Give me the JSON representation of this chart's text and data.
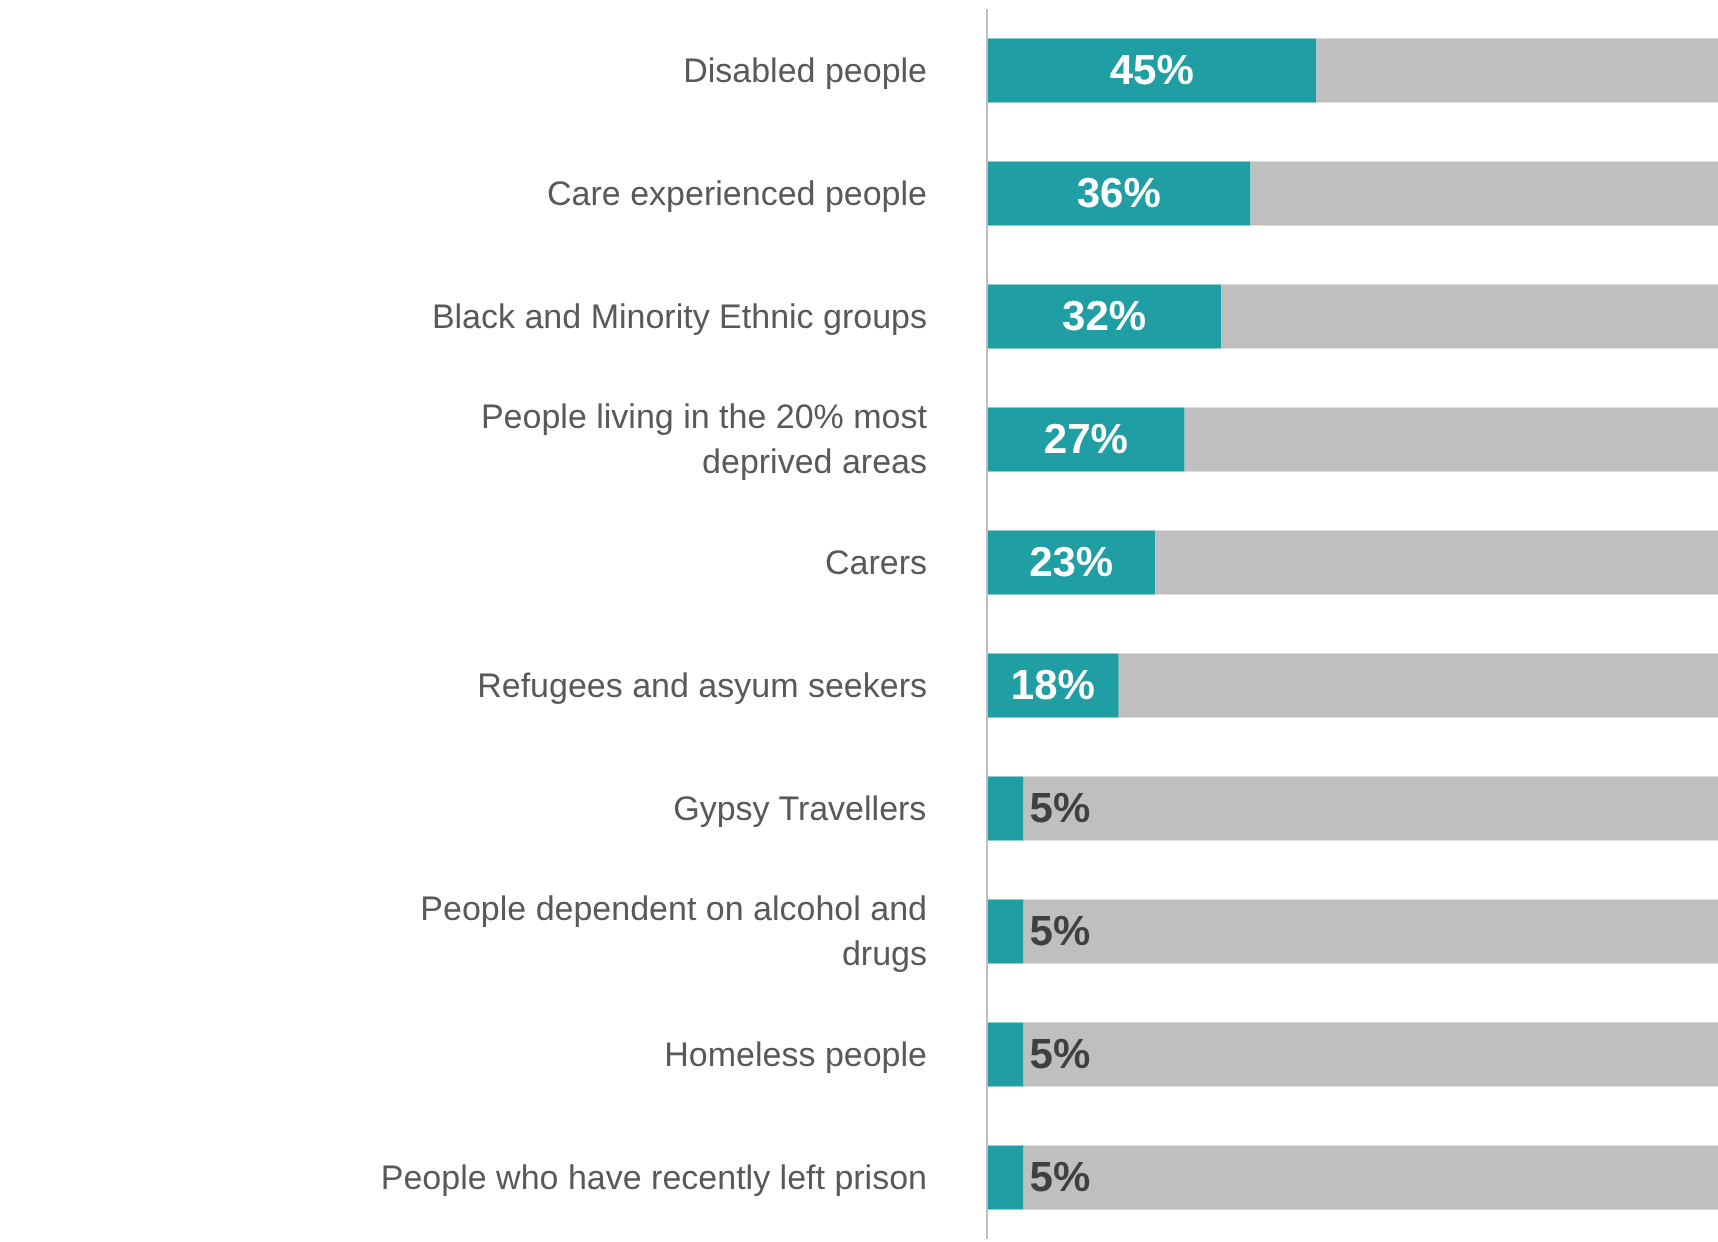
{
  "chart_data": {
    "type": "bar",
    "orientation": "horizontal",
    "stacked": true,
    "categories": [
      "Disabled people",
      "Care experienced people",
      "Black and Minority Ethnic groups",
      "People living in the 20% most deprived areas",
      "Carers",
      "Refugees and asyum seekers",
      "Gypsy Travellers",
      "People dependent on alcohol and drugs",
      "Homeless people",
      "People who have recently left prison"
    ],
    "series": [
      {
        "color": "#1f9ea3",
        "values": [
          45,
          36,
          32,
          27,
          23,
          18,
          5,
          5,
          5,
          5
        ],
        "value_labels": [
          "45%",
          "36%",
          "32%",
          "27%",
          "23%",
          "18%",
          "5%",
          "5%",
          "5%",
          "5%"
        ]
      },
      {
        "color": "#bfbfbf",
        "values": [
          55,
          64,
          68,
          73,
          77,
          82,
          95,
          95,
          95,
          95
        ]
      }
    ],
    "xlim": [
      0,
      100
    ],
    "tick_labels": "y",
    "grid": false
  }
}
